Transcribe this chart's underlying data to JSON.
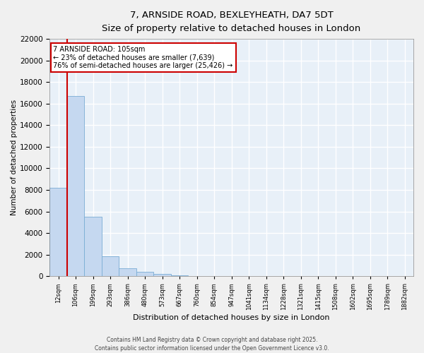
{
  "title": "7, ARNSIDE ROAD, BEXLEYHEATH, DA7 5DT",
  "subtitle": "Size of property relative to detached houses in London",
  "xlabel": "Distribution of detached houses by size in London",
  "ylabel": "Number of detached properties",
  "bar_color": "#c5d8f0",
  "bar_edge_color": "#7aadd4",
  "background_color": "#e8f0f8",
  "grid_color": "#ffffff",
  "fig_background": "#f0f0f0",
  "categories": [
    "12sqm",
    "106sqm",
    "199sqm",
    "293sqm",
    "386sqm",
    "480sqm",
    "573sqm",
    "667sqm",
    "760sqm",
    "854sqm",
    "947sqm",
    "1041sqm",
    "1134sqm",
    "1228sqm",
    "1321sqm",
    "1415sqm",
    "1508sqm",
    "1602sqm",
    "1695sqm",
    "1789sqm",
    "1882sqm"
  ],
  "values": [
    8200,
    16700,
    5500,
    1850,
    750,
    400,
    200,
    100,
    50,
    0,
    0,
    0,
    0,
    0,
    0,
    0,
    0,
    0,
    0,
    0,
    0
  ],
  "ylim": [
    0,
    22000
  ],
  "yticks": [
    0,
    2000,
    4000,
    6000,
    8000,
    10000,
    12000,
    14000,
    16000,
    18000,
    20000,
    22000
  ],
  "vline_x": 0.5,
  "vline_color": "#cc0000",
  "annotation_text": "7 ARNSIDE ROAD: 105sqm\n← 23% of detached houses are smaller (7,639)\n76% of semi-detached houses are larger (25,426) →",
  "annotation_box_color": "#ffffff",
  "annotation_box_edge_color": "#cc0000",
  "footer_line1": "Contains HM Land Registry data © Crown copyright and database right 2025.",
  "footer_line2": "Contains public sector information licensed under the Open Government Licence v3.0."
}
